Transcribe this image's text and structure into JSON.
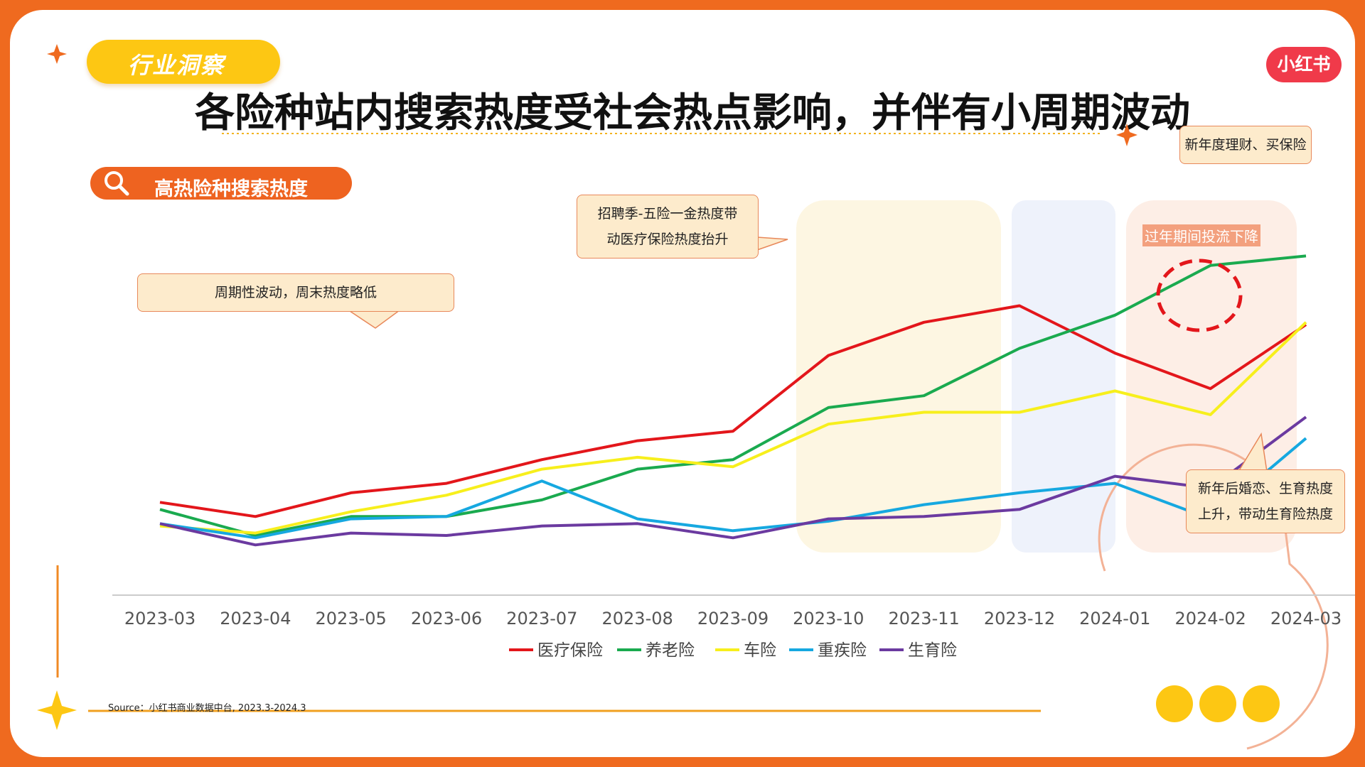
{
  "header": {
    "tag": "行业洞察",
    "logo": "小红书",
    "title": "各险种站内搜索热度受社会热点影响，并伴有小周期波动",
    "section_label": "高热险种搜索热度"
  },
  "callouts": {
    "weekly": "周期性波动，周末热度略低",
    "recruit_1": "招聘季-五险一金热度带",
    "recruit_2": "动医疗保险热度抬升",
    "newyear": "新年度理财、买保险",
    "holiday": "过年期间投流下降",
    "birth_1": "新年后婚恋、生育热度",
    "birth_2": "上升，带动生育险热度"
  },
  "source": "Source：小红书商业数据中台, 2023.3-2024.3",
  "colors": {
    "orange": "#ef6a1f",
    "yellow": "#fdc713"
  },
  "chart_data": {
    "type": "line",
    "categories": [
      "2023-03",
      "2023-04",
      "2023-05",
      "2023-06",
      "2023-07",
      "2023-08",
      "2023-09",
      "2023-10",
      "2023-11",
      "2023-12",
      "2024-01",
      "2024-02",
      "2024-03"
    ],
    "series": [
      {
        "name": "医疗保险",
        "color": "#e3161b",
        "values": [
          20.5,
          17.5,
          22.5,
          24.5,
          29.5,
          33.5,
          35.5,
          51.5,
          58.5,
          62,
          52,
          44.5,
          58
        ]
      },
      {
        "name": "养老险",
        "color": "#1aaa4f",
        "values": [
          19,
          13.5,
          17.5,
          17.5,
          21,
          27.5,
          29.5,
          40.5,
          43,
          53,
          60,
          70.5,
          72.5
        ]
      },
      {
        "name": "车险",
        "color": "#f7ef1c",
        "values": [
          15.5,
          14,
          18.5,
          22,
          27.5,
          30,
          28,
          37,
          39.5,
          39.5,
          44,
          39,
          58.5
        ]
      },
      {
        "name": "重疾险",
        "color": "#16a8e0",
        "values": [
          16,
          13,
          17,
          17.5,
          25,
          17,
          14.5,
          16.5,
          20,
          22.5,
          24.5,
          17,
          34
        ]
      },
      {
        "name": "生育险",
        "color": "#6b3aa0",
        "values": [
          16,
          11.5,
          14,
          13.5,
          15.5,
          16,
          13,
          17,
          17.5,
          19,
          26,
          23.5,
          38.5
        ]
      }
    ]
  }
}
